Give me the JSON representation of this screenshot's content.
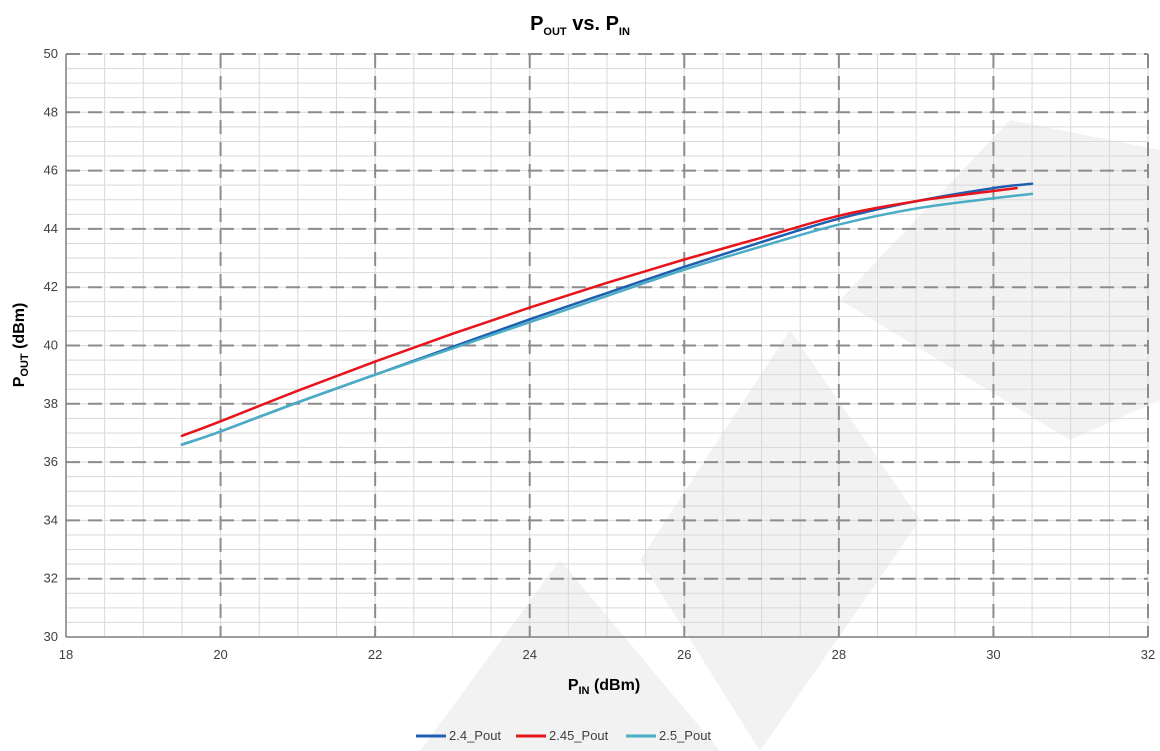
{
  "chart_data": {
    "type": "line",
    "title": {
      "main": "P",
      "sub": "OUT",
      "rest": " vs. P",
      "sub2": "IN"
    },
    "xlabel": {
      "main": "P",
      "sub": "IN",
      "rest": " (dBm)"
    },
    "ylabel": {
      "main": "P",
      "sub": "OUT",
      "rest": " (dBm)"
    },
    "xlim": [
      18,
      32
    ],
    "ylim": [
      30,
      50
    ],
    "x_ticks": [
      "18",
      "20",
      "22",
      "24",
      "26",
      "28",
      "30",
      "32"
    ],
    "y_ticks": [
      "30",
      "32",
      "34",
      "36",
      "38",
      "40",
      "42",
      "44",
      "46",
      "48",
      "50"
    ],
    "grid": true,
    "legend_position": "bottom-center",
    "series": [
      {
        "name": "2.4_Pout",
        "color": "#1f5fb0",
        "x": [
          19.5,
          20,
          21,
          22,
          23,
          24,
          25,
          26,
          27,
          28,
          29,
          30,
          30.5
        ],
        "y": [
          36.6,
          37.05,
          38.05,
          39.0,
          39.95,
          40.9,
          41.8,
          42.7,
          43.55,
          44.35,
          44.95,
          45.4,
          45.55
        ]
      },
      {
        "name": "2.45_Pout",
        "color": "#e8141c",
        "x": [
          19.5,
          20,
          21,
          22,
          23,
          24,
          25,
          26,
          27,
          28,
          29,
          30,
          30.3
        ],
        "y": [
          36.9,
          37.4,
          38.45,
          39.45,
          40.4,
          41.3,
          42.15,
          42.95,
          43.7,
          44.45,
          44.95,
          45.3,
          45.4
        ]
      },
      {
        "name": "2.5_Pout",
        "color": "#4bacc6",
        "x": [
          19.5,
          20,
          21,
          22,
          23,
          24,
          25,
          26,
          27,
          28,
          29,
          30,
          30.5
        ],
        "y": [
          36.6,
          37.05,
          38.05,
          39.0,
          39.9,
          40.8,
          41.7,
          42.6,
          43.4,
          44.15,
          44.7,
          45.05,
          45.2
        ]
      }
    ]
  }
}
